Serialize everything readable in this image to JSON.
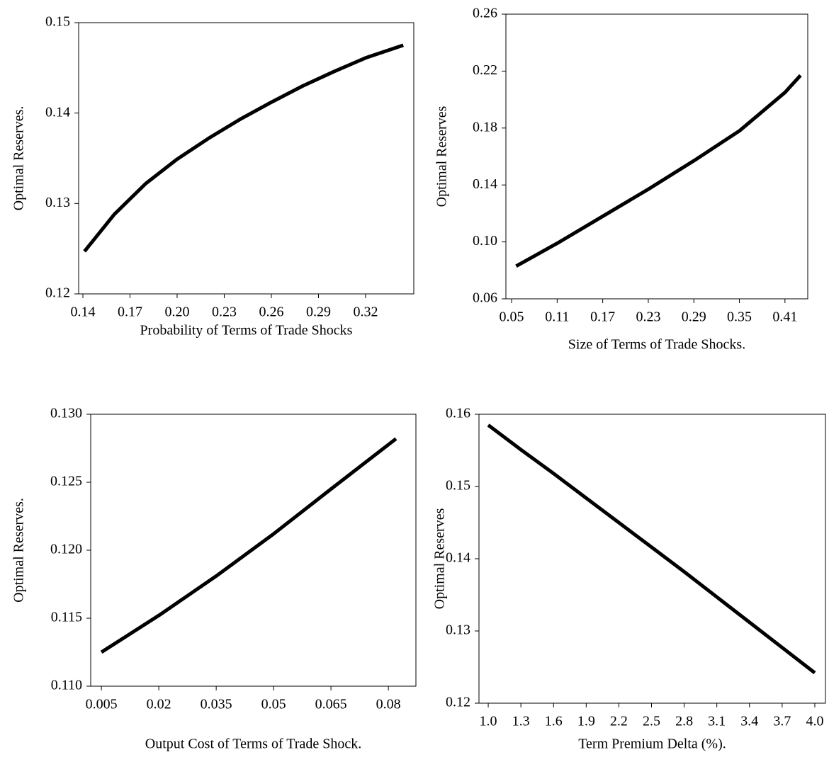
{
  "chart_data": [
    {
      "type": "line",
      "xlabel": "Probability of Terms of Trade Shocks",
      "ylabel": "Optimal Reserves.",
      "x": [
        0.141,
        0.16,
        0.18,
        0.2,
        0.22,
        0.24,
        0.26,
        0.28,
        0.3,
        0.32,
        0.344
      ],
      "series": [
        {
          "color": "#000000",
          "values": [
            0.1247,
            0.1288,
            0.1322,
            0.1349,
            0.1372,
            0.1393,
            0.1412,
            0.143,
            0.1446,
            0.1461,
            0.1475
          ]
        }
      ],
      "xlim": [
        0.1373,
        0.3507
      ],
      "ylim": [
        0.12,
        0.15
      ],
      "xticks": [
        0.14,
        0.17,
        {
          "value": 0.2,
          "label": "0.20"
        },
        0.23,
        0.26,
        0.29,
        0.32
      ],
      "yticks": [
        0.12,
        0.13,
        0.14,
        0.15
      ]
    },
    {
      "type": "line",
      "xlabel": "Size of Terms of Trade Shocks.",
      "ylabel": "Optimal Reserves",
      "x": [
        0.056,
        0.11,
        0.17,
        0.23,
        0.29,
        0.35,
        0.41,
        0.4305
      ],
      "series": [
        {
          "color": "#000000",
          "values": [
            0.083,
            0.099,
            0.118,
            0.137,
            0.157,
            0.178,
            0.205,
            0.217
          ]
        }
      ],
      "xlim": [
        0.0425,
        0.44
      ],
      "ylim": [
        0.06,
        0.26
      ],
      "xticks": [
        0.05,
        0.11,
        0.17,
        0.23,
        0.29,
        0.35,
        0.41
      ],
      "yticks": [
        0.06,
        {
          "value": 0.1,
          "label": "0.10"
        },
        0.14,
        0.18,
        0.22,
        0.26
      ]
    },
    {
      "type": "line",
      "xlabel": "Output Cost of Terms of Trade Shock.",
      "ylabel": "Optimal Reserves.",
      "x": [
        0.005,
        0.02,
        0.035,
        0.05,
        0.065,
        0.082
      ],
      "series": [
        {
          "color": "#000000",
          "values": [
            0.1125,
            0.1152,
            0.1181,
            0.1212,
            0.1245,
            0.1282
          ]
        }
      ],
      "xlim": [
        0.0022,
        0.0872
      ],
      "ylim": [
        0.11,
        0.13
      ],
      "xticks": [
        0.005,
        0.02,
        0.035,
        0.05,
        0.065,
        0.08
      ],
      "yticks": [
        {
          "value": 0.11,
          "label": "0.110"
        },
        0.115,
        {
          "value": 0.12,
          "label": "0.120"
        },
        0.125,
        {
          "value": 0.13,
          "label": "0.130"
        }
      ]
    },
    {
      "type": "line",
      "xlabel": "Term Premium Delta (%).",
      "ylabel": "Optimal Reserves",
      "x": [
        1.0,
        1.3,
        1.6,
        1.9,
        2.2,
        2.5,
        2.8,
        3.1,
        3.4,
        3.7,
        4.0
      ],
      "series": [
        {
          "color": "#000000",
          "values": [
            0.1585,
            0.1551,
            0.1518,
            0.1484,
            0.145,
            0.1416,
            0.1382,
            0.1347,
            0.1312,
            0.1277,
            0.1242
          ]
        }
      ],
      "xlim": [
        0.915,
        4.098
      ],
      "ylim": [
        0.12,
        0.16
      ],
      "xticks": [
        {
          "value": 1.0,
          "label": "1.0"
        },
        1.3,
        1.6,
        1.9,
        2.2,
        2.5,
        2.8,
        3.1,
        3.4,
        3.7,
        {
          "value": 4.0,
          "label": "4.0"
        }
      ],
      "yticks": [
        0.12,
        0.13,
        0.14,
        0.15,
        0.16
      ]
    }
  ]
}
